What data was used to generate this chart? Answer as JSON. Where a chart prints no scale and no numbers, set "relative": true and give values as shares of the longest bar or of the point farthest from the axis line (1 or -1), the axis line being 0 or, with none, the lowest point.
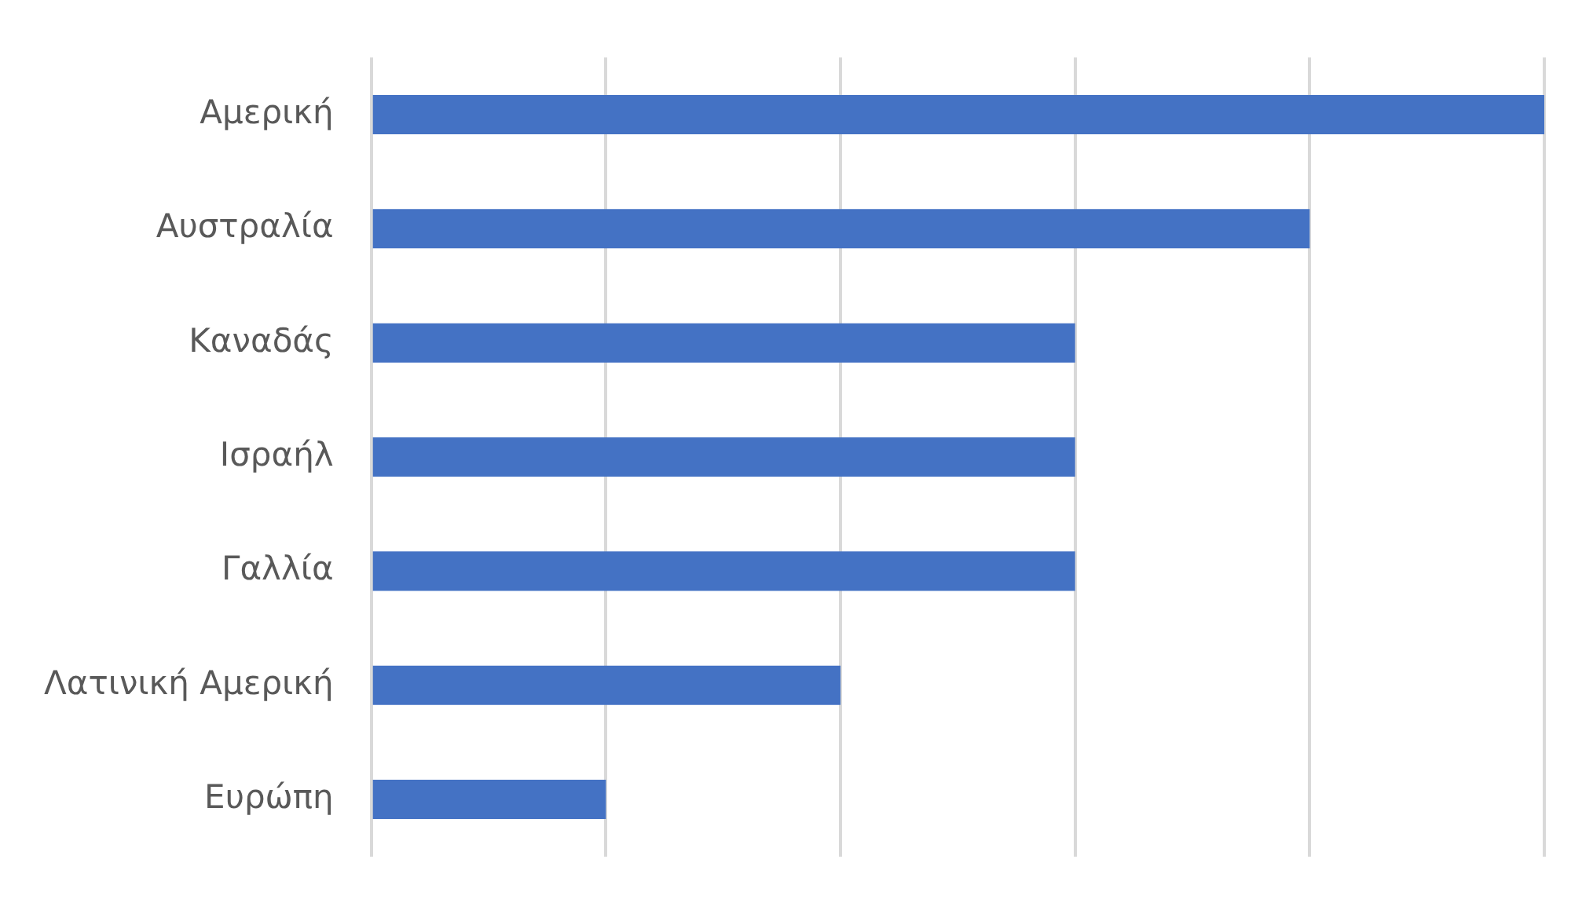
{
  "chart_data": {
    "type": "bar",
    "orientation": "horizontal",
    "relative": true,
    "grid": "x",
    "legend": false,
    "categories": [
      "Αμερική",
      "Αυστραλία",
      "Καναδάς",
      "Ισραήλ",
      "Γαλλία",
      "Λατινική Αμερική",
      "Ευρώπη"
    ],
    "values": [
      1,
      0.8,
      0.6,
      0.6,
      0.6,
      0.4,
      0.2
    ],
    "color": "#4472c4"
  }
}
